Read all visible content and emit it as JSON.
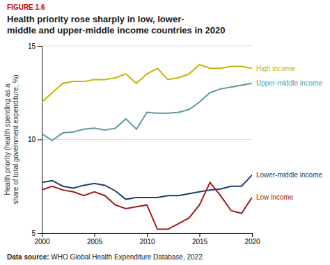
{
  "chart_data": {
    "type": "line",
    "title": "Health priority rose sharply in low, lower-\nmiddle and upper-middle income countries in 2020",
    "y_label": "Health priority (health spending as a\nshare of total government expenditure, %)",
    "annotations": [
      {
        "text": "FIGURE 1.6",
        "color": "#cc0000"
      },
      {
        "text": "Data source:"
      },
      {
        "text": " WHO Global Health Expenditure Database, 2022."
      }
    ],
    "x": [
      2000,
      2001,
      2002,
      2003,
      2004,
      2005,
      2006,
      2007,
      2008,
      2009,
      2010,
      2011,
      2012,
      2013,
      2014,
      2015,
      2016,
      2017,
      2018,
      2019,
      2020
    ],
    "series": [
      {
        "name": "High income",
        "color": "#c8b400",
        "values": [
          12.0,
          12.5,
          13.0,
          13.1,
          13.1,
          13.2,
          13.2,
          13.3,
          13.5,
          13.0,
          13.5,
          13.8,
          13.2,
          13.3,
          13.5,
          14.0,
          13.8,
          13.8,
          13.9,
          13.9,
          13.8
        ]
      },
      {
        "name": "Upper-middle income",
        "color": "#5b9ba0",
        "values": [
          10.3,
          9.95,
          10.35,
          10.4,
          10.55,
          10.6,
          10.5,
          10.6,
          11.1,
          10.55,
          11.45,
          11.4,
          11.4,
          11.45,
          11.6,
          12.0,
          12.5,
          12.7,
          12.8,
          12.9,
          13.0
        ]
      },
      {
        "name": "Lower-middle income",
        "color": "#1c3f6e",
        "values": [
          7.7,
          7.8,
          7.5,
          7.4,
          7.55,
          7.65,
          7.55,
          7.25,
          6.8,
          6.9,
          6.9,
          6.9,
          7.0,
          7.0,
          7.1,
          7.2,
          7.3,
          7.35,
          7.5,
          7.5,
          8.1
        ]
      },
      {
        "name": "Low income",
        "color": "#9e1a1a",
        "values": [
          7.3,
          7.5,
          7.3,
          7.2,
          7.0,
          7.2,
          7.0,
          6.5,
          6.3,
          6.4,
          6.5,
          5.2,
          5.2,
          5.5,
          5.8,
          6.5,
          7.7,
          7.0,
          6.2,
          6.05,
          6.9
        ]
      }
    ],
    "xlim": [
      2000,
      2020
    ],
    "ylim": [
      5,
      15
    ],
    "xticks": [
      2000,
      2005,
      2010,
      2015,
      2020
    ],
    "yticks": [
      5,
      10,
      15
    ],
    "grid": true
  }
}
